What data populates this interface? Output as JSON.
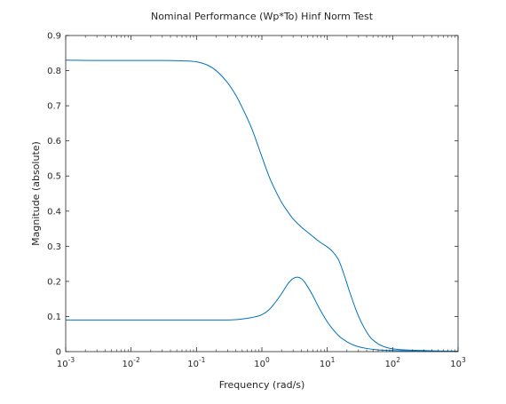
{
  "chart_data": {
    "type": "line",
    "title": "Nominal Performance (Wp*To) Hinf Norm Test",
    "xlabel": "Frequency (rad/s)",
    "ylabel": "Magnitude (absolute)",
    "xscale": "log",
    "xlim": [
      0.001,
      1000
    ],
    "ylim": [
      0,
      0.9
    ],
    "grid": false,
    "box": true,
    "line_color": "#0072bd",
    "x_ticks": [
      {
        "value": 0.001,
        "base": "10",
        "exp": "-3"
      },
      {
        "value": 0.01,
        "base": "10",
        "exp": "-2"
      },
      {
        "value": 0.1,
        "base": "10",
        "exp": "-1"
      },
      {
        "value": 1,
        "base": "10",
        "exp": "0"
      },
      {
        "value": 10,
        "base": "10",
        "exp": "1"
      },
      {
        "value": 100,
        "base": "10",
        "exp": "2"
      },
      {
        "value": 1000,
        "base": "10",
        "exp": "3"
      }
    ],
    "y_ticks": [
      {
        "value": 0,
        "label": "0"
      },
      {
        "value": 0.1,
        "label": "0.1"
      },
      {
        "value": 0.2,
        "label": "0.2"
      },
      {
        "value": 0.3,
        "label": "0.3"
      },
      {
        "value": 0.4,
        "label": "0.4"
      },
      {
        "value": 0.5,
        "label": "0.5"
      },
      {
        "value": 0.6,
        "label": "0.6"
      },
      {
        "value": 0.7,
        "label": "0.7"
      },
      {
        "value": 0.8,
        "label": "0.8"
      },
      {
        "value": 0.9,
        "label": "0.9"
      }
    ],
    "series": [
      {
        "x": [
          0.001,
          0.003,
          0.01,
          0.03,
          0.06,
          0.1,
          0.15,
          0.2,
          0.3,
          0.4,
          0.5,
          0.7,
          1.0,
          1.3,
          1.6,
          2.0,
          2.5,
          3.0,
          4.0,
          5.0,
          6.0,
          7.0,
          8.0,
          10,
          12,
          15,
          18,
          22,
          28,
          35,
          45,
          60,
          80,
          100,
          150,
          200,
          300,
          500,
          1000
        ],
        "y": [
          0.83,
          0.829,
          0.829,
          0.829,
          0.828,
          0.825,
          0.815,
          0.8,
          0.765,
          0.73,
          0.695,
          0.635,
          0.555,
          0.497,
          0.46,
          0.425,
          0.398,
          0.378,
          0.355,
          0.34,
          0.328,
          0.318,
          0.31,
          0.298,
          0.285,
          0.26,
          0.22,
          0.17,
          0.115,
          0.075,
          0.042,
          0.022,
          0.012,
          0.008,
          0.005,
          0.004,
          0.003,
          0.002,
          0.001
        ]
      },
      {
        "x": [
          0.001,
          0.01,
          0.03,
          0.06,
          0.1,
          0.2,
          0.3,
          0.4,
          0.5,
          0.7,
          1.0,
          1.3,
          1.6,
          2.0,
          2.5,
          3.0,
          3.5,
          4.0,
          4.5,
          5.0,
          6.0,
          7.0,
          8.0,
          10,
          12,
          15,
          20,
          25,
          30,
          40,
          60,
          100,
          200,
          500,
          1000
        ],
        "y": [
          0.09,
          0.09,
          0.09,
          0.09,
          0.09,
          0.09,
          0.09,
          0.091,
          0.093,
          0.097,
          0.105,
          0.12,
          0.14,
          0.165,
          0.193,
          0.208,
          0.212,
          0.208,
          0.198,
          0.185,
          0.16,
          0.135,
          0.115,
          0.085,
          0.065,
          0.045,
          0.028,
          0.019,
          0.014,
          0.009,
          0.005,
          0.003,
          0.002,
          0.001,
          0.001
        ]
      }
    ]
  }
}
